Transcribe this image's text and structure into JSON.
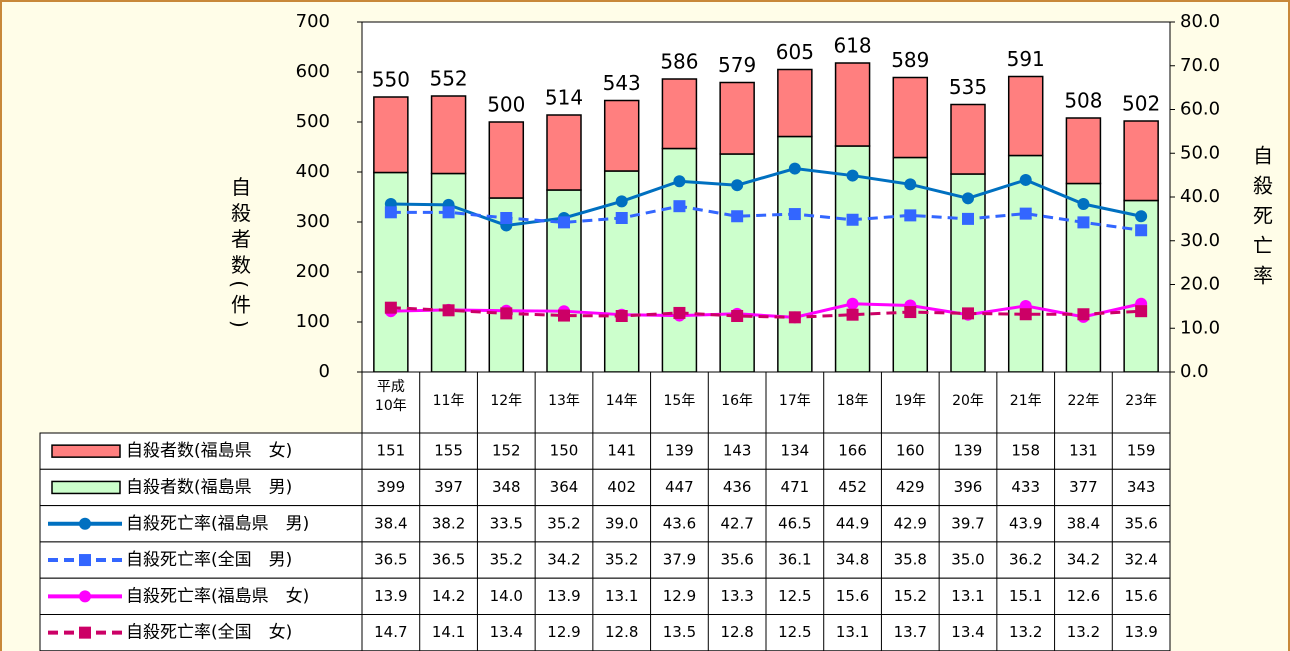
{
  "chart_data": {
    "type": "bar-line-table",
    "y_label": "自殺者数(件)",
    "y2_label": "自殺死亡率",
    "categories": [
      "平成10年",
      "11年",
      "12年",
      "13年",
      "14年",
      "15年",
      "16年",
      "17年",
      "18年",
      "19年",
      "20年",
      "21年",
      "22年",
      "23年"
    ],
    "ylim": [
      0,
      700
    ],
    "yticks": [
      0,
      100,
      200,
      300,
      400,
      500,
      600,
      700
    ],
    "y2lim": [
      0,
      80
    ],
    "y2ticks": [
      {
        "value": 0,
        "label": "0.0"
      },
      {
        "value": 10,
        "label": "10.0"
      },
      {
        "value": 20,
        "label": "20.0"
      },
      {
        "value": 30,
        "label": "30.0"
      },
      {
        "value": 40,
        "label": "40.0"
      },
      {
        "value": 50,
        "label": "50.0"
      },
      {
        "value": 60,
        "label": "60.0"
      },
      {
        "value": 70,
        "label": "70.0"
      },
      {
        "value": 80,
        "label": "80.0"
      }
    ],
    "total_labels": [
      550,
      552,
      500,
      514,
      543,
      586,
      579,
      605,
      618,
      589,
      535,
      591,
      508,
      502
    ],
    "series": [
      {
        "name": "自殺者数(福島県　女)",
        "kind": "bar",
        "color": "#ff7f7f",
        "values": [
          151,
          155,
          152,
          150,
          141,
          139,
          143,
          134,
          166,
          160,
          139,
          158,
          131,
          159
        ]
      },
      {
        "name": "自殺者数(福島県　男)",
        "kind": "bar",
        "color": "#ccffcc",
        "values": [
          399,
          397,
          348,
          364,
          402,
          447,
          436,
          471,
          452,
          429,
          396,
          433,
          377,
          343
        ]
      },
      {
        "name": "自殺死亡率(福島県　男)",
        "kind": "line",
        "axis": "y2",
        "color": "#0070c0",
        "dash": false,
        "marker": "circle",
        "values": [
          38.4,
          38.2,
          33.5,
          35.2,
          39,
          43.6,
          42.7,
          46.5,
          44.9,
          42.9,
          39.7,
          43.9,
          38.4,
          35.6
        ],
        "value_labels": [
          "38.4",
          "38.2",
          "33.5",
          "35.2",
          "39.0",
          "43.6",
          "42.7",
          "46.5",
          "44.9",
          "42.9",
          "39.7",
          "43.9",
          "38.4",
          "35.6"
        ]
      },
      {
        "name": "自殺死亡率(全国　男)",
        "kind": "line",
        "axis": "y2",
        "color": "#3366ff",
        "dash": true,
        "marker": "square",
        "values": [
          36.5,
          36.5,
          35.2,
          34.2,
          35.2,
          37.9,
          35.6,
          36.1,
          34.8,
          35.8,
          35,
          36.2,
          34.2,
          32.4
        ],
        "value_labels": [
          "36.5",
          "36.5",
          "35.2",
          "34.2",
          "35.2",
          "37.9",
          "35.6",
          "36.1",
          "34.8",
          "35.8",
          "35.0",
          "36.2",
          "34.2",
          "32.4"
        ]
      },
      {
        "name": "自殺死亡率(福島県　女)",
        "kind": "line",
        "axis": "y2",
        "color": "#ff00ff",
        "dash": false,
        "marker": "circle",
        "values": [
          13.9,
          14.2,
          14,
          13.9,
          13.1,
          12.9,
          13.3,
          12.5,
          15.6,
          15.2,
          13.1,
          15.1,
          12.6,
          15.6
        ],
        "value_labels": [
          "13.9",
          "14.2",
          "14.0",
          "13.9",
          "13.1",
          "12.9",
          "13.3",
          "12.5",
          "15.6",
          "15.2",
          "13.1",
          "15.1",
          "12.6",
          "15.6"
        ]
      },
      {
        "name": "自殺死亡率(全国　女)",
        "kind": "line",
        "axis": "y2",
        "color": "#cc0066",
        "dash": true,
        "marker": "square",
        "values": [
          14.7,
          14.1,
          13.4,
          12.9,
          12.8,
          13.5,
          12.8,
          12.5,
          13.1,
          13.7,
          13.4,
          13.2,
          13.2,
          13.9
        ],
        "value_labels": [
          "14.7",
          "14.1",
          "13.4",
          "12.9",
          "12.8",
          "13.5",
          "12.8",
          "12.5",
          "13.1",
          "13.7",
          "13.4",
          "13.2",
          "13.2",
          "13.9"
        ]
      }
    ]
  }
}
